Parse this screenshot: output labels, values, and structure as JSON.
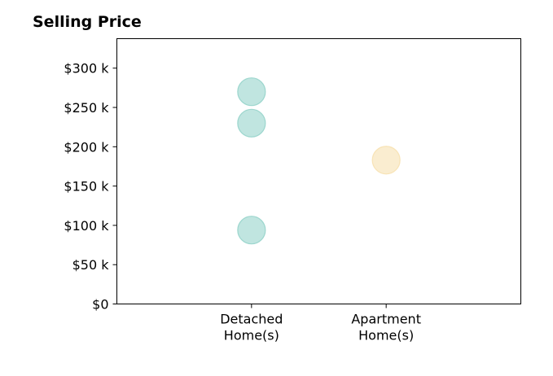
{
  "chart_data": {
    "type": "scatter",
    "title": "Selling Price",
    "xlabel": "",
    "ylabel": "",
    "categories": [
      [
        "Detached",
        "Home(s)"
      ],
      [
        "Apartment",
        "Home(s)"
      ]
    ],
    "ylim": [
      0,
      337500
    ],
    "y_ticks": [
      0,
      50000,
      100000,
      150000,
      200000,
      250000,
      300000
    ],
    "y_tick_labels": [
      "$0",
      "$50 k",
      "$100 k",
      "$150 k",
      "$200 k",
      "$250 k",
      "$300 k"
    ],
    "x_range": [
      0,
      3
    ],
    "x_positions": [
      1,
      2
    ],
    "grid": false,
    "legend": "none",
    "points": [
      {
        "category": 0,
        "y": 270000,
        "color": "#8ccfc6"
      },
      {
        "category": 0,
        "y": 230000,
        "color": "#8ccfc6"
      },
      {
        "category": 0,
        "y": 94000,
        "color": "#8ccfc6"
      },
      {
        "category": 1,
        "y": 183000,
        "color": "#f6dfaa"
      }
    ]
  }
}
